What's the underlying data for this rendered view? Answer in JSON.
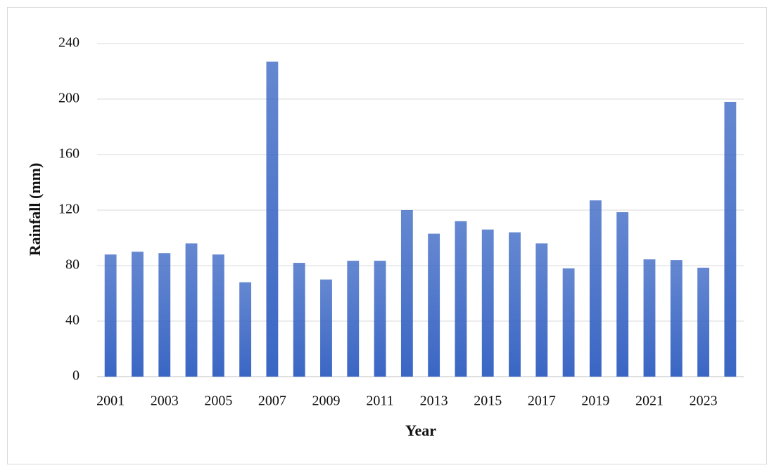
{
  "chart_data": {
    "type": "bar",
    "x_label": "Year",
    "y_label": "Rainfall (mm)",
    "categories": [
      "2001",
      null,
      "2003",
      null,
      "2005",
      null,
      "2007",
      null,
      "2009",
      null,
      "2011",
      null,
      "2013",
      null,
      "2015",
      null,
      "2017",
      null,
      "2019",
      null,
      "2021",
      null,
      "2023",
      null
    ],
    "values": [
      88,
      90,
      89,
      96,
      88,
      68,
      227,
      82,
      70,
      83.5,
      83.5,
      120,
      103,
      112,
      106,
      104,
      96,
      78,
      127,
      118.5,
      84.5,
      84,
      78.5,
      198
    ],
    "color": "#3a66c4",
    "ylim": [
      0,
      240
    ],
    "yticks": [
      0,
      40,
      80,
      120,
      160,
      200,
      240
    ],
    "grid": true
  }
}
